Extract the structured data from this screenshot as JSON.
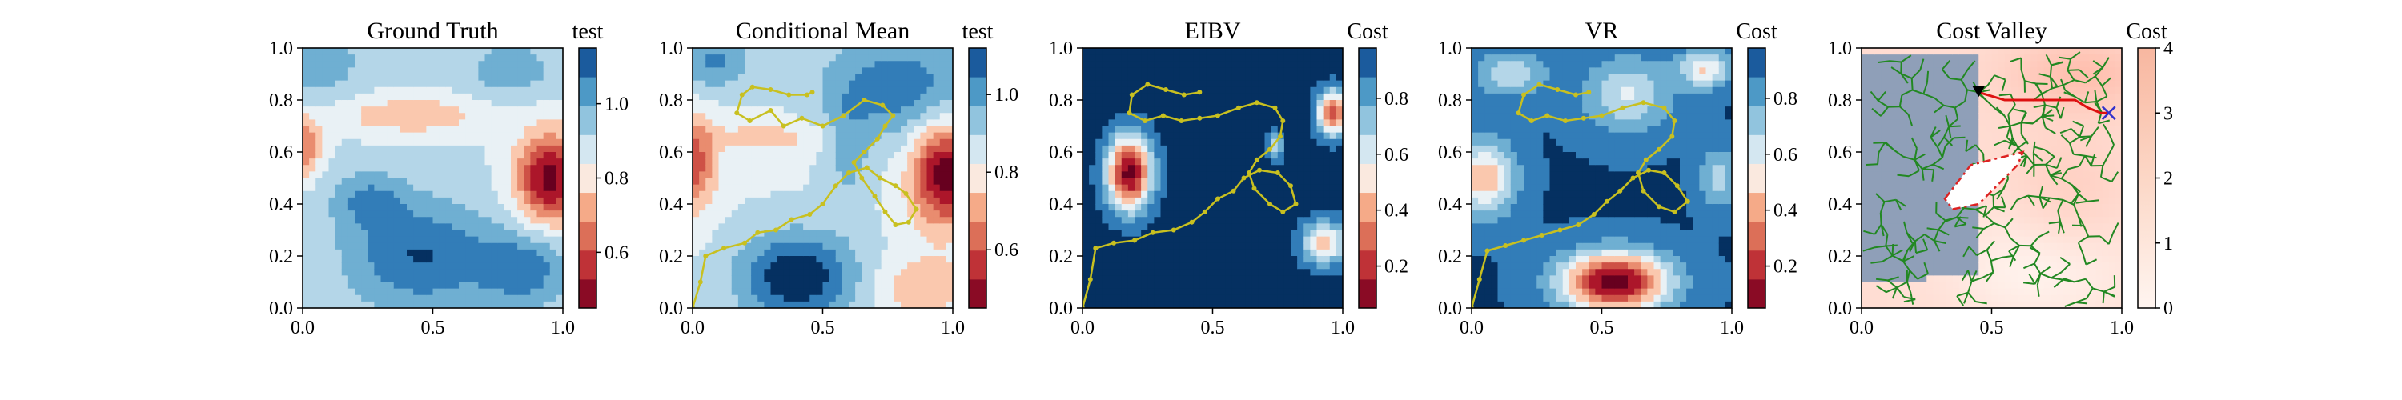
{
  "chart_data": [
    {
      "type": "heatmap",
      "title": "Ground Truth",
      "colorbar_label": "test",
      "colorbar_ticks": [
        "0.6",
        "0.8",
        "1.0"
      ],
      "colorbar_tick_values": [
        0.6,
        0.8,
        1.0
      ],
      "colorbar_range": [
        0.45,
        1.15
      ],
      "xlim": [
        0,
        1
      ],
      "ylim": [
        0,
        1
      ],
      "xticks": [
        "0.0",
        "0.5",
        "1.0"
      ],
      "yticks": [
        "0.0",
        "0.2",
        "0.4",
        "0.6",
        "0.8",
        "1.0"
      ],
      "colormap": "RdBu",
      "trajectory": []
    },
    {
      "type": "heatmap",
      "title": "Conditional Mean",
      "colorbar_label": "test",
      "colorbar_ticks": [
        "0.6",
        "0.8",
        "1.0"
      ],
      "colorbar_tick_values": [
        0.6,
        0.8,
        1.0
      ],
      "colorbar_range": [
        0.45,
        1.12
      ],
      "xlim": [
        0,
        1
      ],
      "ylim": [
        0,
        1
      ],
      "xticks": [
        "0.0",
        "0.5",
        "1.0"
      ],
      "yticks": [
        "0.0",
        "0.2",
        "0.4",
        "0.6",
        "0.8",
        "1.0"
      ],
      "colormap": "RdBu",
      "trajectory_color": "#c8c020",
      "trajectory": [
        [
          0.0,
          0.0
        ],
        [
          0.03,
          0.1
        ],
        [
          0.05,
          0.2
        ],
        [
          0.12,
          0.23
        ],
        [
          0.2,
          0.25
        ],
        [
          0.25,
          0.29
        ],
        [
          0.32,
          0.3
        ],
        [
          0.38,
          0.34
        ],
        [
          0.45,
          0.36
        ],
        [
          0.5,
          0.4
        ],
        [
          0.55,
          0.47
        ],
        [
          0.6,
          0.52
        ],
        [
          0.67,
          0.54
        ],
        [
          0.72,
          0.5
        ],
        [
          0.78,
          0.47
        ],
        [
          0.82,
          0.44
        ],
        [
          0.86,
          0.38
        ],
        [
          0.83,
          0.33
        ],
        [
          0.78,
          0.32
        ],
        [
          0.74,
          0.37
        ],
        [
          0.7,
          0.43
        ],
        [
          0.65,
          0.5
        ],
        [
          0.62,
          0.56
        ],
        [
          0.66,
          0.6
        ],
        [
          0.71,
          0.65
        ],
        [
          0.74,
          0.7
        ],
        [
          0.77,
          0.74
        ],
        [
          0.73,
          0.78
        ],
        [
          0.66,
          0.8
        ],
        [
          0.58,
          0.74
        ],
        [
          0.5,
          0.7
        ],
        [
          0.42,
          0.73
        ],
        [
          0.35,
          0.7
        ],
        [
          0.3,
          0.76
        ],
        [
          0.22,
          0.72
        ],
        [
          0.17,
          0.75
        ],
        [
          0.19,
          0.82
        ],
        [
          0.23,
          0.85
        ],
        [
          0.3,
          0.84
        ],
        [
          0.37,
          0.82
        ],
        [
          0.44,
          0.82
        ],
        [
          0.46,
          0.83
        ]
      ]
    },
    {
      "type": "heatmap",
      "title": "EIBV",
      "colorbar_label": "Cost",
      "colorbar_ticks": [
        "0.2",
        "0.4",
        "0.6",
        "0.8"
      ],
      "colorbar_tick_values": [
        0.2,
        0.4,
        0.6,
        0.8
      ],
      "colorbar_range": [
        0.05,
        0.98
      ],
      "xlim": [
        0,
        1
      ],
      "ylim": [
        0,
        1
      ],
      "xticks": [
        "0.0",
        "0.5",
        "1.0"
      ],
      "yticks": [
        "0.0",
        "0.2",
        "0.4",
        "0.6",
        "0.8",
        "1.0"
      ],
      "colormap": "RdBu",
      "trajectory_color": "#c8c020",
      "trajectory": [
        [
          0.0,
          0.0
        ],
        [
          0.03,
          0.11
        ],
        [
          0.05,
          0.23
        ],
        [
          0.12,
          0.25
        ],
        [
          0.2,
          0.26
        ],
        [
          0.27,
          0.29
        ],
        [
          0.35,
          0.3
        ],
        [
          0.42,
          0.33
        ],
        [
          0.47,
          0.37
        ],
        [
          0.52,
          0.42
        ],
        [
          0.58,
          0.45
        ],
        [
          0.62,
          0.5
        ],
        [
          0.68,
          0.53
        ],
        [
          0.75,
          0.52
        ],
        [
          0.8,
          0.47
        ],
        [
          0.82,
          0.4
        ],
        [
          0.77,
          0.37
        ],
        [
          0.72,
          0.4
        ],
        [
          0.66,
          0.46
        ],
        [
          0.64,
          0.52
        ],
        [
          0.67,
          0.57
        ],
        [
          0.72,
          0.61
        ],
        [
          0.76,
          0.66
        ],
        [
          0.77,
          0.72
        ],
        [
          0.74,
          0.77
        ],
        [
          0.67,
          0.79
        ],
        [
          0.6,
          0.77
        ],
        [
          0.52,
          0.74
        ],
        [
          0.45,
          0.73
        ],
        [
          0.38,
          0.72
        ],
        [
          0.31,
          0.74
        ],
        [
          0.24,
          0.72
        ],
        [
          0.18,
          0.75
        ],
        [
          0.19,
          0.82
        ],
        [
          0.25,
          0.86
        ],
        [
          0.32,
          0.84
        ],
        [
          0.39,
          0.82
        ],
        [
          0.45,
          0.83
        ]
      ]
    },
    {
      "type": "heatmap",
      "title": "VR",
      "colorbar_label": "Cost",
      "colorbar_ticks": [
        "0.2",
        "0.4",
        "0.6",
        "0.8"
      ],
      "colorbar_tick_values": [
        0.2,
        0.4,
        0.6,
        0.8
      ],
      "colorbar_range": [
        0.05,
        0.98
      ],
      "xlim": [
        0,
        1
      ],
      "ylim": [
        0,
        1
      ],
      "xticks": [
        "0.0",
        "0.5",
        "1.0"
      ],
      "yticks": [
        "0.0",
        "0.2",
        "0.4",
        "0.6",
        "0.8",
        "1.0"
      ],
      "colormap": "RdBu",
      "trajectory_color": "#c8c020",
      "trajectory": [
        [
          0.0,
          0.0
        ],
        [
          0.03,
          0.11
        ],
        [
          0.06,
          0.22
        ],
        [
          0.13,
          0.24
        ],
        [
          0.2,
          0.26
        ],
        [
          0.27,
          0.28
        ],
        [
          0.34,
          0.3
        ],
        [
          0.41,
          0.32
        ],
        [
          0.47,
          0.36
        ],
        [
          0.52,
          0.41
        ],
        [
          0.57,
          0.45
        ],
        [
          0.62,
          0.5
        ],
        [
          0.68,
          0.53
        ],
        [
          0.74,
          0.52
        ],
        [
          0.79,
          0.47
        ],
        [
          0.83,
          0.41
        ],
        [
          0.78,
          0.37
        ],
        [
          0.72,
          0.39
        ],
        [
          0.66,
          0.45
        ],
        [
          0.64,
          0.52
        ],
        [
          0.67,
          0.57
        ],
        [
          0.72,
          0.61
        ],
        [
          0.77,
          0.66
        ],
        [
          0.78,
          0.72
        ],
        [
          0.74,
          0.77
        ],
        [
          0.66,
          0.79
        ],
        [
          0.58,
          0.77
        ],
        [
          0.5,
          0.74
        ],
        [
          0.43,
          0.73
        ],
        [
          0.36,
          0.72
        ],
        [
          0.29,
          0.74
        ],
        [
          0.23,
          0.72
        ],
        [
          0.18,
          0.75
        ],
        [
          0.2,
          0.82
        ],
        [
          0.26,
          0.86
        ],
        [
          0.33,
          0.84
        ],
        [
          0.4,
          0.82
        ],
        [
          0.45,
          0.83
        ]
      ]
    },
    {
      "type": "heatmap",
      "title": "Cost Valley",
      "colorbar_label": "Cost",
      "colorbar_ticks": [
        "0",
        "1",
        "2",
        "3",
        "4"
      ],
      "colorbar_tick_values": [
        0,
        1,
        2,
        3,
        4
      ],
      "colorbar_range": [
        0,
        4
      ],
      "xlim": [
        0,
        1
      ],
      "ylim": [
        0,
        1
      ],
      "xticks": [
        "0.0",
        "0.5",
        "1.0"
      ],
      "yticks": [
        "0.0",
        "0.2",
        "0.4",
        "0.6",
        "0.8",
        "1.0"
      ],
      "colormap": "Reds",
      "start_marker": [
        0.45,
        0.83
      ],
      "target_marker": [
        0.95,
        0.75
      ],
      "chosen_path": [
        [
          0.45,
          0.83
        ],
        [
          0.55,
          0.8
        ],
        [
          0.65,
          0.8
        ],
        [
          0.75,
          0.8
        ],
        [
          0.82,
          0.8
        ],
        [
          0.87,
          0.77
        ],
        [
          0.92,
          0.75
        ],
        [
          0.95,
          0.75
        ]
      ],
      "obstacle_polygon": [
        [
          0.32,
          0.42
        ],
        [
          0.42,
          0.55
        ],
        [
          0.62,
          0.6
        ],
        [
          0.6,
          0.55
        ],
        [
          0.45,
          0.4
        ],
        [
          0.35,
          0.38
        ],
        [
          0.32,
          0.42
        ]
      ],
      "tree_color": "#228822",
      "trajectory": []
    }
  ]
}
